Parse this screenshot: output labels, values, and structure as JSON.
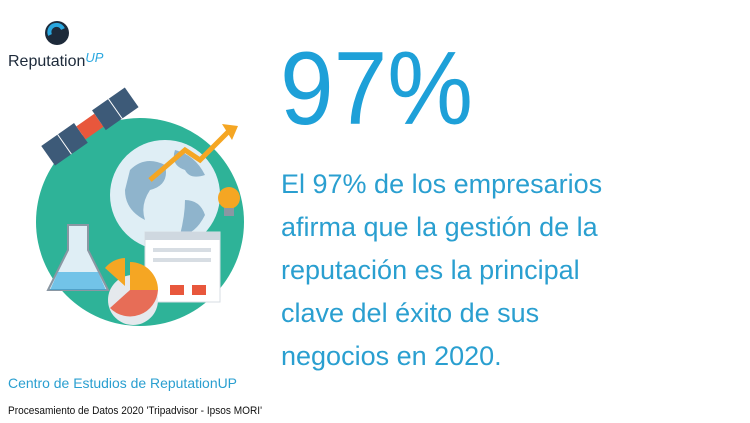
{
  "logo": {
    "name": "Reputation",
    "suffix": "UP"
  },
  "headline": {
    "stat": "97%",
    "lines": [
      "El 97% de los empresarios",
      "afirma que la gestión de la",
      "reputación es la principal",
      "clave del éxito de sus",
      "negocios en 2020."
    ]
  },
  "footer": {
    "source": "Centro de Estudios de ReputationUP",
    "note": "Procesamiento de Datos 2020 'Tripadvisor - Ipsos MORI'"
  }
}
